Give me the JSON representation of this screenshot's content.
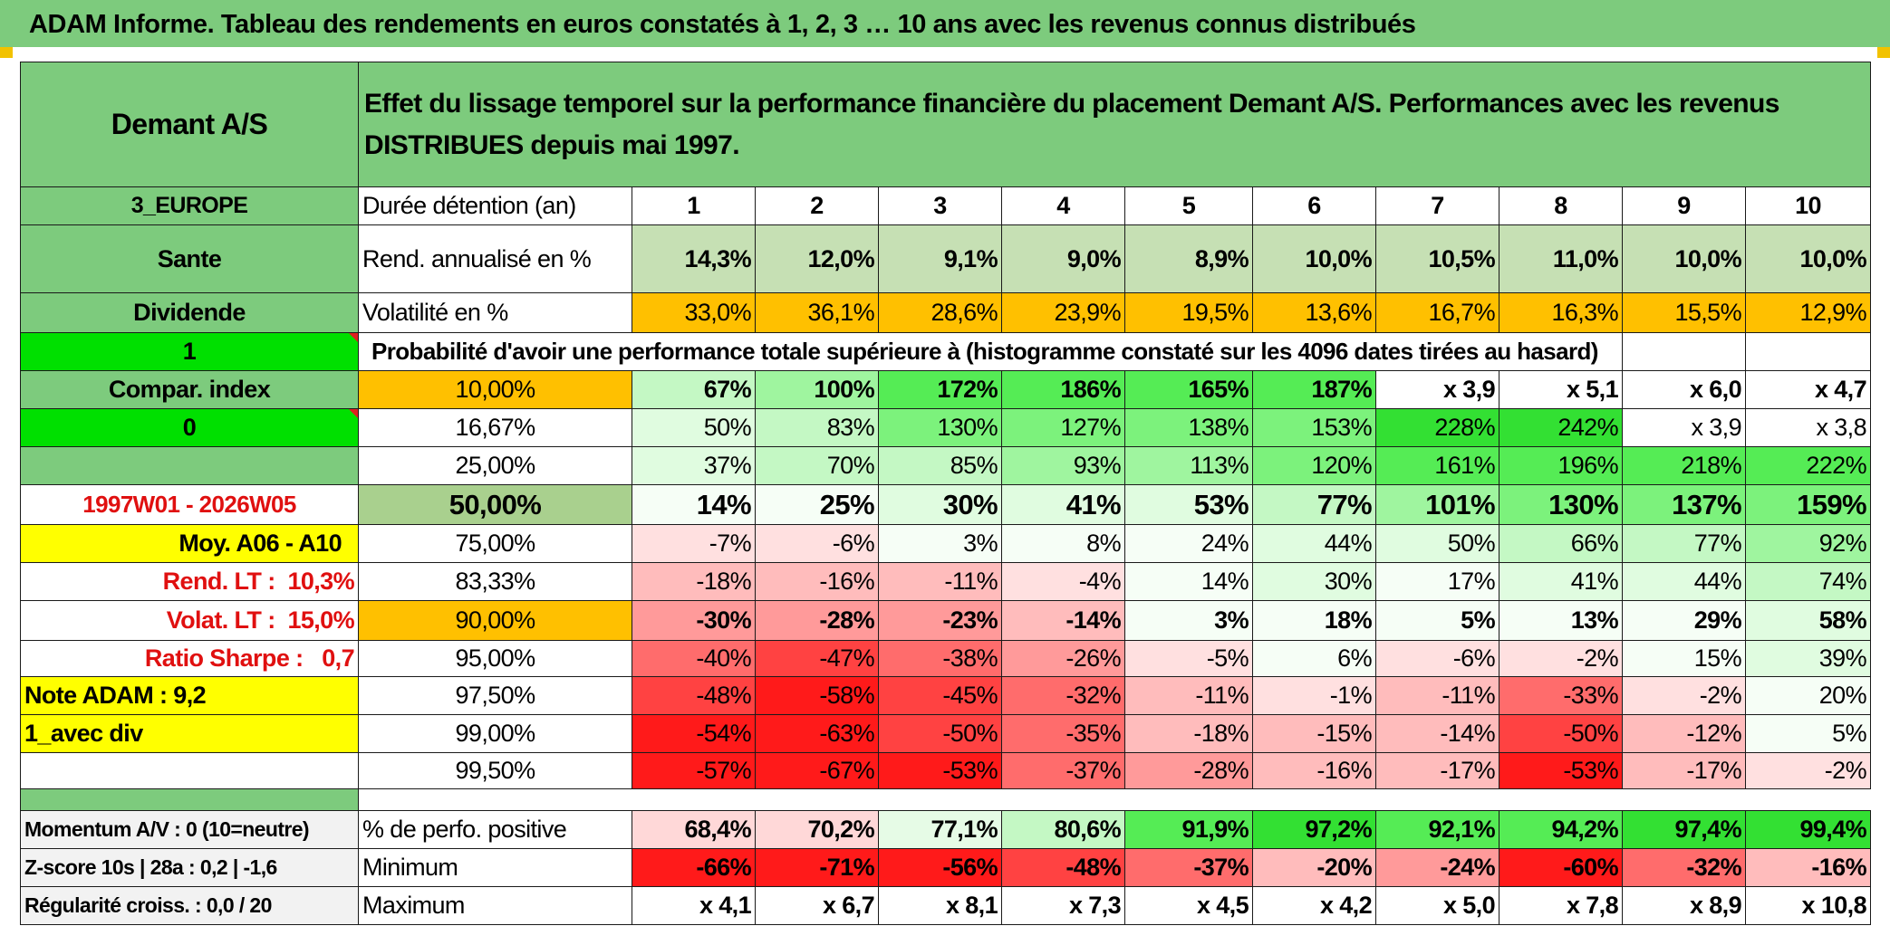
{
  "page_title": "ADAM Informe. Tableau des rendements en euros constatés à 1, 2, 3 … 10 ans avec les revenus connus distribués",
  "header": {
    "fund_name": "Demant A/S",
    "description": "Effet du lissage temporel sur la performance financière du placement Demant A/S. Performances avec les revenus DISTRIBUES depuis mai 1997."
  },
  "sidebar": {
    "region": "3_EUROPE",
    "sector": "Sante",
    "type": "Dividende",
    "flag_value": "1",
    "compar_label": "Compar. index",
    "compar_value": "0",
    "period": "1997W01 - 2026W05",
    "moy": "Moy. A06 - A10",
    "rend_lt_label": "Rend. LT :",
    "rend_lt_value": "10,3%",
    "volat_lt_label": "Volat. LT :",
    "volat_lt_value": "15,0%",
    "sharpe_label": "Ratio Sharpe :",
    "sharpe_value": "0,7",
    "note": "Note ADAM : 9,2",
    "mode": "1_avec div",
    "momentum": "Momentum A/V : 0 (10=neutre)",
    "zscore": "Z-score 10s | 28a : 0,2 | -1,6",
    "regularite": "Régularité croiss. : 0,0 / 20"
  },
  "table": {
    "duration_label": "Durée détention (an)",
    "years": [
      "1",
      "2",
      "3",
      "4",
      "5",
      "6",
      "7",
      "8",
      "9",
      "10"
    ],
    "rend_label": "Rend. annualisé en %",
    "rend": [
      "14,3%",
      "12,0%",
      "9,1%",
      "9,0%",
      "8,9%",
      "10,0%",
      "10,5%",
      "11,0%",
      "10,0%",
      "10,0%"
    ],
    "vol_label": "Volatilité en %",
    "vol": [
      "33,0%",
      "36,1%",
      "28,6%",
      "23,9%",
      "19,5%",
      "13,6%",
      "16,7%",
      "16,3%",
      "15,5%",
      "12,9%"
    ],
    "prob_title": "Probabilité d'avoir une performance totale supérieure à (histogramme constaté sur les 4096 dates tirées au hasard)",
    "prob_rows": [
      {
        "pct": "10,00%",
        "values": [
          "67%",
          "100%",
          "172%",
          "186%",
          "165%",
          "187%",
          "x 3,9",
          "x 5,1",
          "x 6,0",
          "x 4,7"
        ]
      },
      {
        "pct": "16,67%",
        "values": [
          "50%",
          "83%",
          "130%",
          "127%",
          "138%",
          "153%",
          "228%",
          "242%",
          "x 3,9",
          "x 3,8"
        ]
      },
      {
        "pct": "25,00%",
        "values": [
          "37%",
          "70%",
          "85%",
          "93%",
          "113%",
          "120%",
          "161%",
          "196%",
          "218%",
          "222%"
        ]
      },
      {
        "pct": "50,00%",
        "values": [
          "14%",
          "25%",
          "30%",
          "41%",
          "53%",
          "77%",
          "101%",
          "130%",
          "137%",
          "159%"
        ]
      },
      {
        "pct": "75,00%",
        "values": [
          "-7%",
          "-6%",
          "3%",
          "8%",
          "24%",
          "44%",
          "50%",
          "66%",
          "77%",
          "92%"
        ]
      },
      {
        "pct": "83,33%",
        "values": [
          "-18%",
          "-16%",
          "-11%",
          "-4%",
          "14%",
          "30%",
          "17%",
          "41%",
          "44%",
          "74%"
        ]
      },
      {
        "pct": "90,00%",
        "values": [
          "-30%",
          "-28%",
          "-23%",
          "-14%",
          "3%",
          "18%",
          "5%",
          "13%",
          "29%",
          "58%"
        ]
      },
      {
        "pct": "95,00%",
        "values": [
          "-40%",
          "-47%",
          "-38%",
          "-26%",
          "-5%",
          "6%",
          "-6%",
          "-2%",
          "15%",
          "39%"
        ]
      },
      {
        "pct": "97,50%",
        "values": [
          "-48%",
          "-58%",
          "-45%",
          "-32%",
          "-11%",
          "-1%",
          "-11%",
          "-33%",
          "-2%",
          "20%"
        ]
      },
      {
        "pct": "99,00%",
        "values": [
          "-54%",
          "-63%",
          "-50%",
          "-35%",
          "-18%",
          "-15%",
          "-14%",
          "-50%",
          "-12%",
          "5%"
        ]
      },
      {
        "pct": "99,50%",
        "values": [
          "-57%",
          "-67%",
          "-53%",
          "-37%",
          "-28%",
          "-16%",
          "-17%",
          "-53%",
          "-17%",
          "-2%"
        ]
      }
    ],
    "pos_label": "% de perfo. positive",
    "pos": [
      "68,4%",
      "70,2%",
      "77,1%",
      "80,6%",
      "91,9%",
      "97,2%",
      "92,1%",
      "94,2%",
      "97,4%",
      "99,4%"
    ],
    "min_label": "Minimum",
    "min": [
      "-66%",
      "-71%",
      "-56%",
      "-48%",
      "-37%",
      "-20%",
      "-24%",
      "-60%",
      "-32%",
      "-16%"
    ],
    "max_label": "Maximum",
    "max": [
      "x 4,1",
      "x 6,7",
      "x 8,1",
      "x 7,3",
      "x 4,5",
      "x 4,2",
      "x 5,0",
      "x 7,8",
      "x 8,9",
      "x 10,8"
    ]
  },
  "colors": {
    "header_green": "#7dcb7d",
    "bright_green": "#00e000",
    "orange": "#ffc000",
    "yellow": "#ffff00",
    "red_text": "#e01010",
    "rend_bg": "#c6e0b4"
  }
}
